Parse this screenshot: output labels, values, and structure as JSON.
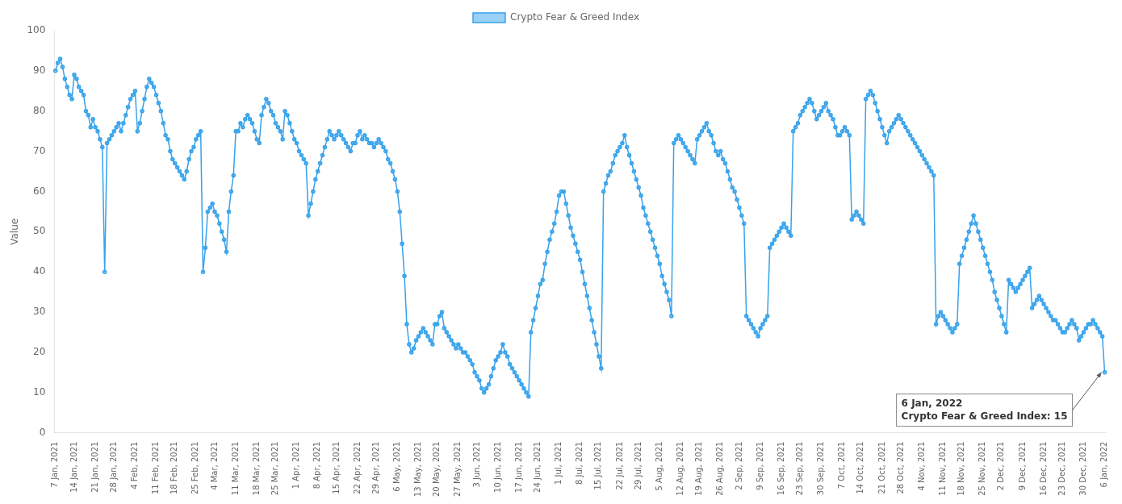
{
  "chart_data": {
    "type": "line",
    "ylabel": "Value",
    "annotation": "6 Jan, 2022\nCrypto Fear & Greed Index: 15",
    "legend": "top",
    "grid": false,
    "marker": "circle",
    "ylim": [
      0,
      100
    ],
    "yticks": [
      0,
      10,
      20,
      30,
      40,
      50,
      60,
      70,
      80,
      90,
      100
    ],
    "categories": [
      "7 Jan, 2021",
      null,
      null,
      null,
      null,
      null,
      null,
      null,
      "14 Jan, 2021",
      null,
      null,
      null,
      null,
      null,
      null,
      null,
      null,
      "21 Jan, 2021",
      null,
      null,
      null,
      null,
      null,
      null,
      null,
      "28 Jan, 2021",
      null,
      null,
      null,
      null,
      null,
      null,
      null,
      null,
      "4 Feb, 2021",
      null,
      null,
      null,
      null,
      null,
      null,
      null,
      null,
      "11 Feb, 2021",
      null,
      null,
      null,
      null,
      null,
      null,
      null,
      "18 Feb, 2021",
      null,
      null,
      null,
      null,
      null,
      null,
      null,
      null,
      "25 Feb, 2021",
      null,
      null,
      null,
      null,
      null,
      null,
      null,
      "4 Mar, 2021",
      null,
      null,
      null,
      null,
      null,
      null,
      null,
      null,
      "11 Mar, 2021",
      null,
      null,
      null,
      null,
      null,
      null,
      null,
      null,
      "18 Mar, 2021",
      null,
      null,
      null,
      null,
      null,
      null,
      null,
      "25 Mar, 2021",
      null,
      null,
      null,
      null,
      null,
      null,
      null,
      null,
      "1 Apr, 2021",
      null,
      null,
      null,
      null,
      null,
      null,
      null,
      null,
      "8 Apr, 2021",
      null,
      null,
      null,
      null,
      null,
      null,
      null,
      "15 Apr, 2021",
      null,
      null,
      null,
      null,
      null,
      null,
      null,
      null,
      "22 Apr, 2021",
      null,
      null,
      null,
      null,
      null,
      null,
      null,
      "29 Apr, 2021",
      null,
      null,
      null,
      null,
      null,
      null,
      null,
      null,
      "6 May, 2021",
      null,
      null,
      null,
      null,
      null,
      null,
      null,
      null,
      "13 May, 2021",
      null,
      null,
      null,
      null,
      null,
      null,
      null,
      "20 May, 2021",
      null,
      null,
      null,
      null,
      null,
      null,
      null,
      null,
      "27 May, 2021",
      null,
      null,
      null,
      null,
      null,
      null,
      null,
      "3 Jun, 2021",
      null,
      null,
      null,
      null,
      null,
      null,
      null,
      null,
      "10 Jun, 2021",
      null,
      null,
      null,
      null,
      null,
      null,
      null,
      null,
      "17 Jun, 2021",
      null,
      null,
      null,
      null,
      null,
      null,
      null,
      "24 Jun, 2021",
      null,
      null,
      null,
      null,
      null,
      null,
      null,
      null,
      "1 Jul, 2021",
      null,
      null,
      null,
      null,
      null,
      null,
      null,
      null,
      "8 Jul, 2021",
      null,
      null,
      null,
      null,
      null,
      null,
      null,
      "15 Jul, 2021",
      null,
      null,
      null,
      null,
      null,
      null,
      null,
      null,
      "22 Jul, 2021",
      null,
      null,
      null,
      null,
      null,
      null,
      null,
      "29 Jul, 2021",
      null,
      null,
      null,
      null,
      null,
      null,
      null,
      null,
      "5 Aug, 2021",
      null,
      null,
      null,
      null,
      null,
      null,
      null,
      null,
      "12 Aug, 2021",
      null,
      null,
      null,
      null,
      null,
      null,
      null,
      "19 Aug, 2021",
      null,
      null,
      null,
      null,
      null,
      null,
      null,
      null,
      "26 Aug, 2021",
      null,
      null,
      null,
      null,
      null,
      null,
      null,
      "2 Sep, 2021",
      null,
      null,
      null,
      null,
      null,
      null,
      null,
      null,
      "9 Sep, 2021",
      null,
      null,
      null,
      null,
      null,
      null,
      null,
      null,
      "16 Sep, 2021",
      null,
      null,
      null,
      null,
      null,
      null,
      null,
      "23 Sep, 2021",
      null,
      null,
      null,
      null,
      null,
      null,
      null,
      null,
      "30 Sep, 2021",
      null,
      null,
      null,
      null,
      null,
      null,
      null,
      null,
      "7 Oct, 2021",
      null,
      null,
      null,
      null,
      null,
      null,
      null,
      "14 Oct, 2021",
      null,
      null,
      null,
      null,
      null,
      null,
      null,
      null,
      "21 Oct, 2021",
      null,
      null,
      null,
      null,
      null,
      null,
      null,
      "28 Oct, 2021",
      null,
      null,
      null,
      null,
      null,
      null,
      null,
      null,
      "4 Nov, 2021",
      null,
      null,
      null,
      null,
      null,
      null,
      null,
      null,
      "11 Nov, 2021",
      null,
      null,
      null,
      null,
      null,
      null,
      null,
      "18 Nov, 2021",
      null,
      null,
      null,
      null,
      null,
      null,
      null,
      null,
      "25 Nov, 2021",
      null,
      null,
      null,
      null,
      null,
      null,
      null,
      "2 Dec, 2021",
      null,
      null,
      null,
      null,
      null,
      null,
      null,
      null,
      "9 Dec, 2021",
      null,
      null,
      null,
      null,
      null,
      null,
      null,
      null,
      "16 Dec, 2021",
      null,
      null,
      null,
      null,
      null,
      null,
      null,
      "23 Dec, 2021",
      null,
      null,
      null,
      null,
      null,
      null,
      null,
      null,
      "30 Dec, 2021",
      null,
      null,
      null,
      null,
      null,
      null,
      null,
      null,
      "6 Jan, 2022"
    ],
    "series": [
      {
        "name": "Crypto Fear & Greed Index",
        "values": [
          90,
          92,
          93,
          91,
          88,
          86,
          84,
          83,
          89,
          88,
          86,
          85,
          84,
          80,
          79,
          76,
          78,
          76,
          75,
          73,
          71,
          40,
          72,
          73,
          74,
          75,
          76,
          77,
          75,
          77,
          79,
          81,
          83,
          84,
          85,
          75,
          77,
          80,
          83,
          86,
          88,
          87,
          86,
          84,
          82,
          80,
          77,
          74,
          73,
          70,
          68,
          67,
          66,
          65,
          64,
          63,
          65,
          68,
          70,
          71,
          73,
          74,
          75,
          40,
          46,
          55,
          56,
          57,
          55,
          54,
          52,
          50,
          48,
          45,
          55,
          60,
          64,
          75,
          75,
          77,
          76,
          78,
          79,
          78,
          77,
          75,
          73,
          72,
          79,
          81,
          83,
          82,
          80,
          79,
          77,
          76,
          75,
          73,
          80,
          79,
          77,
          75,
          73,
          72,
          70,
          69,
          68,
          67,
          54,
          57,
          60,
          63,
          65,
          67,
          69,
          71,
          73,
          75,
          74,
          73,
          74,
          75,
          74,
          73,
          72,
          71,
          70,
          72,
          72,
          74,
          75,
          73,
          74,
          73,
          72,
          72,
          71,
          72,
          73,
          72,
          71,
          70,
          68,
          67,
          65,
          63,
          60,
          55,
          47,
          39,
          27,
          22,
          20,
          21,
          23,
          24,
          25,
          26,
          25,
          24,
          23,
          22,
          27,
          27,
          29,
          30,
          26,
          25,
          24,
          23,
          22,
          21,
          22,
          21,
          20,
          20,
          19,
          18,
          17,
          15,
          14,
          13,
          11,
          10,
          11,
          12,
          14,
          16,
          18,
          19,
          20,
          22,
          20,
          19,
          17,
          16,
          15,
          14,
          13,
          12,
          11,
          10,
          9,
          25,
          28,
          31,
          34,
          37,
          38,
          42,
          45,
          48,
          50,
          52,
          55,
          59,
          60,
          60,
          57,
          54,
          51,
          49,
          47,
          45,
          43,
          40,
          37,
          34,
          31,
          28,
          25,
          22,
          19,
          16,
          60,
          62,
          64,
          65,
          67,
          69,
          70,
          71,
          72,
          74,
          71,
          69,
          67,
          65,
          63,
          61,
          59,
          56,
          54,
          52,
          50,
          48,
          46,
          44,
          42,
          39,
          37,
          35,
          33,
          29,
          72,
          73,
          74,
          73,
          72,
          71,
          70,
          69,
          68,
          67,
          73,
          74,
          75,
          76,
          77,
          75,
          74,
          72,
          70,
          69,
          70,
          68,
          67,
          65,
          63,
          61,
          60,
          58,
          56,
          54,
          52,
          29,
          28,
          27,
          26,
          25,
          24,
          26,
          27,
          28,
          29,
          46,
          47,
          48,
          49,
          50,
          51,
          52,
          51,
          50,
          49,
          75,
          76,
          77,
          79,
          80,
          81,
          82,
          83,
          82,
          80,
          78,
          79,
          80,
          81,
          82,
          80,
          79,
          78,
          76,
          74,
          74,
          75,
          76,
          75,
          74,
          53,
          54,
          55,
          54,
          53,
          52,
          83,
          84,
          85,
          84,
          82,
          80,
          78,
          76,
          74,
          72,
          75,
          76,
          77,
          78,
          79,
          78,
          77,
          76,
          75,
          74,
          73,
          72,
          71,
          70,
          69,
          68,
          67,
          66,
          65,
          64,
          27,
          29,
          30,
          29,
          28,
          27,
          26,
          25,
          26,
          27,
          42,
          44,
          46,
          48,
          50,
          52,
          54,
          52,
          50,
          48,
          46,
          44,
          42,
          40,
          38,
          35,
          33,
          31,
          29,
          27,
          25,
          38,
          37,
          36,
          35,
          36,
          37,
          38,
          39,
          40,
          41,
          31,
          32,
          33,
          34,
          33,
          32,
          31,
          30,
          29,
          28,
          28,
          27,
          26,
          25,
          25,
          26,
          27,
          28,
          27,
          26,
          23,
          24,
          25,
          26,
          27,
          27,
          28,
          27,
          26,
          25,
          24,
          15
        ]
      }
    ]
  }
}
